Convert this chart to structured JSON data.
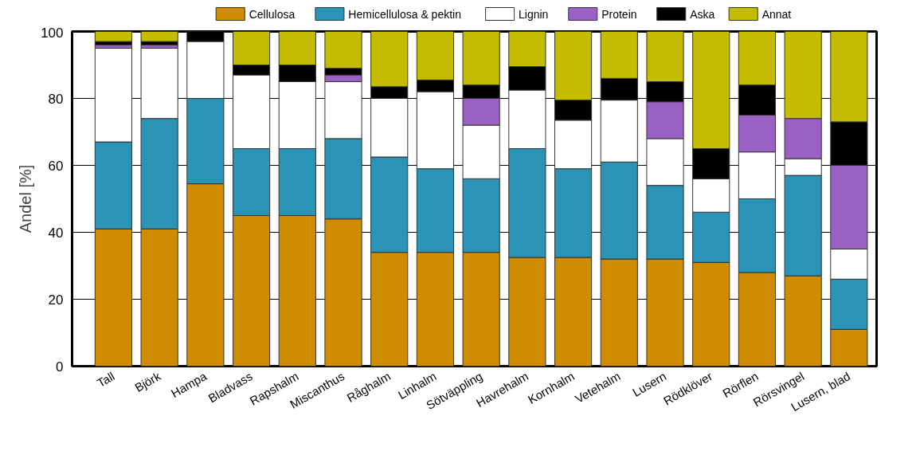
{
  "chart_data": {
    "type": "bar",
    "stacked": true,
    "ylabel": "Andel [%]",
    "ylim": [
      0,
      100
    ],
    "yticks": [
      0,
      20,
      40,
      60,
      80,
      100
    ],
    "grid": "y",
    "legend": "top",
    "categories": [
      "Tall",
      "Björk",
      "Hampa",
      "Bladvass",
      "Rapshalm",
      "Miscanthus",
      "Råghalm",
      "Linhalm",
      "Sötväppling",
      "Havrehalm",
      "Kornhalm",
      "Vetehalm",
      "Lusern",
      "Rödklöver",
      "Rörflen",
      "Rörsvingel",
      "Lusern, blad"
    ],
    "series": [
      {
        "name": "Cellulosa",
        "color": "#d08c00",
        "values": [
          41,
          41,
          54.5,
          45,
          45,
          44,
          34,
          34,
          34,
          32.5,
          32.5,
          32,
          32,
          31,
          28,
          27,
          11
        ]
      },
      {
        "name": "Hemicellulosa & pektin",
        "color": "#2b93b5",
        "values": [
          26,
          33,
          25.5,
          20,
          20,
          24,
          28.5,
          25,
          22,
          32.5,
          26.5,
          29,
          22,
          15,
          22,
          30,
          15
        ]
      },
      {
        "name": "Lignin",
        "color": "#ffffff",
        "values": [
          28,
          21,
          17,
          22,
          20,
          17,
          17.5,
          23,
          16,
          17.5,
          14.5,
          18.5,
          14,
          10,
          14,
          5,
          9
        ]
      },
      {
        "name": "Protein",
        "color": "#9b60c4",
        "values": [
          1,
          1,
          0,
          0,
          0,
          2,
          0,
          0,
          8,
          0,
          0,
          0,
          11,
          0,
          11,
          12,
          25
        ]
      },
      {
        "name": "Aska",
        "color": "#000000",
        "values": [
          1,
          1,
          3,
          3,
          5,
          2,
          3.5,
          3.5,
          4,
          7,
          6,
          6.5,
          6,
          9,
          9,
          0,
          13
        ]
      },
      {
        "name": "Annat",
        "color": "#c4bc00",
        "values": [
          3,
          3,
          0,
          10,
          10,
          11,
          16.5,
          14.5,
          16,
          10.5,
          20.5,
          14,
          15,
          35,
          16,
          26,
          27
        ]
      }
    ]
  }
}
